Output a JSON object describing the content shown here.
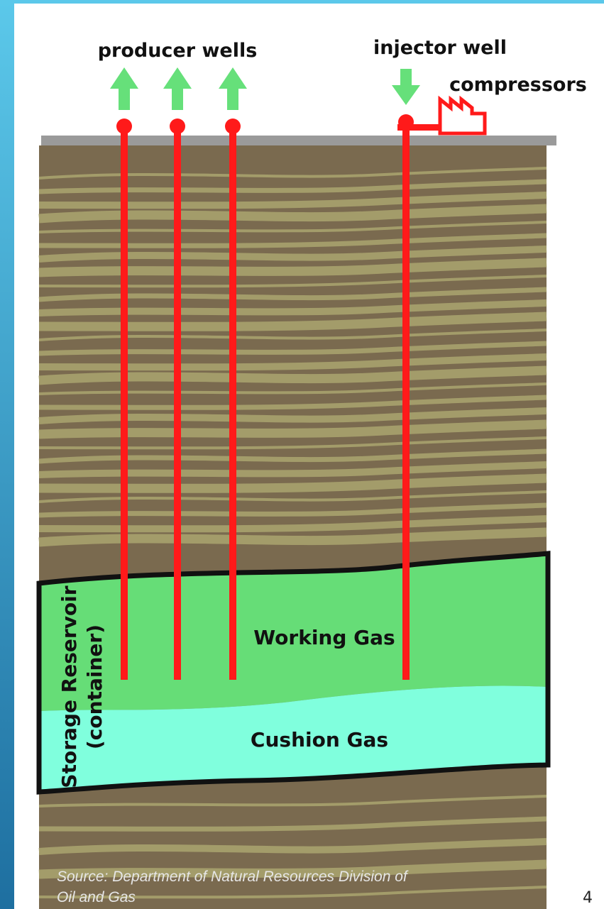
{
  "labels": {
    "producer_wells": "producer wells",
    "injector_well": "injector well",
    "compressors": "compressors",
    "reservoir_line1": "Storage Reservoir",
    "reservoir_line2": "(container)",
    "working_gas": "Working Gas",
    "cushion_gas": "Cushion Gas"
  },
  "source": {
    "line1": "Source: Department of Natural Resources Division of",
    "line2": "Oil and Gas"
  },
  "page_number": "4"
}
